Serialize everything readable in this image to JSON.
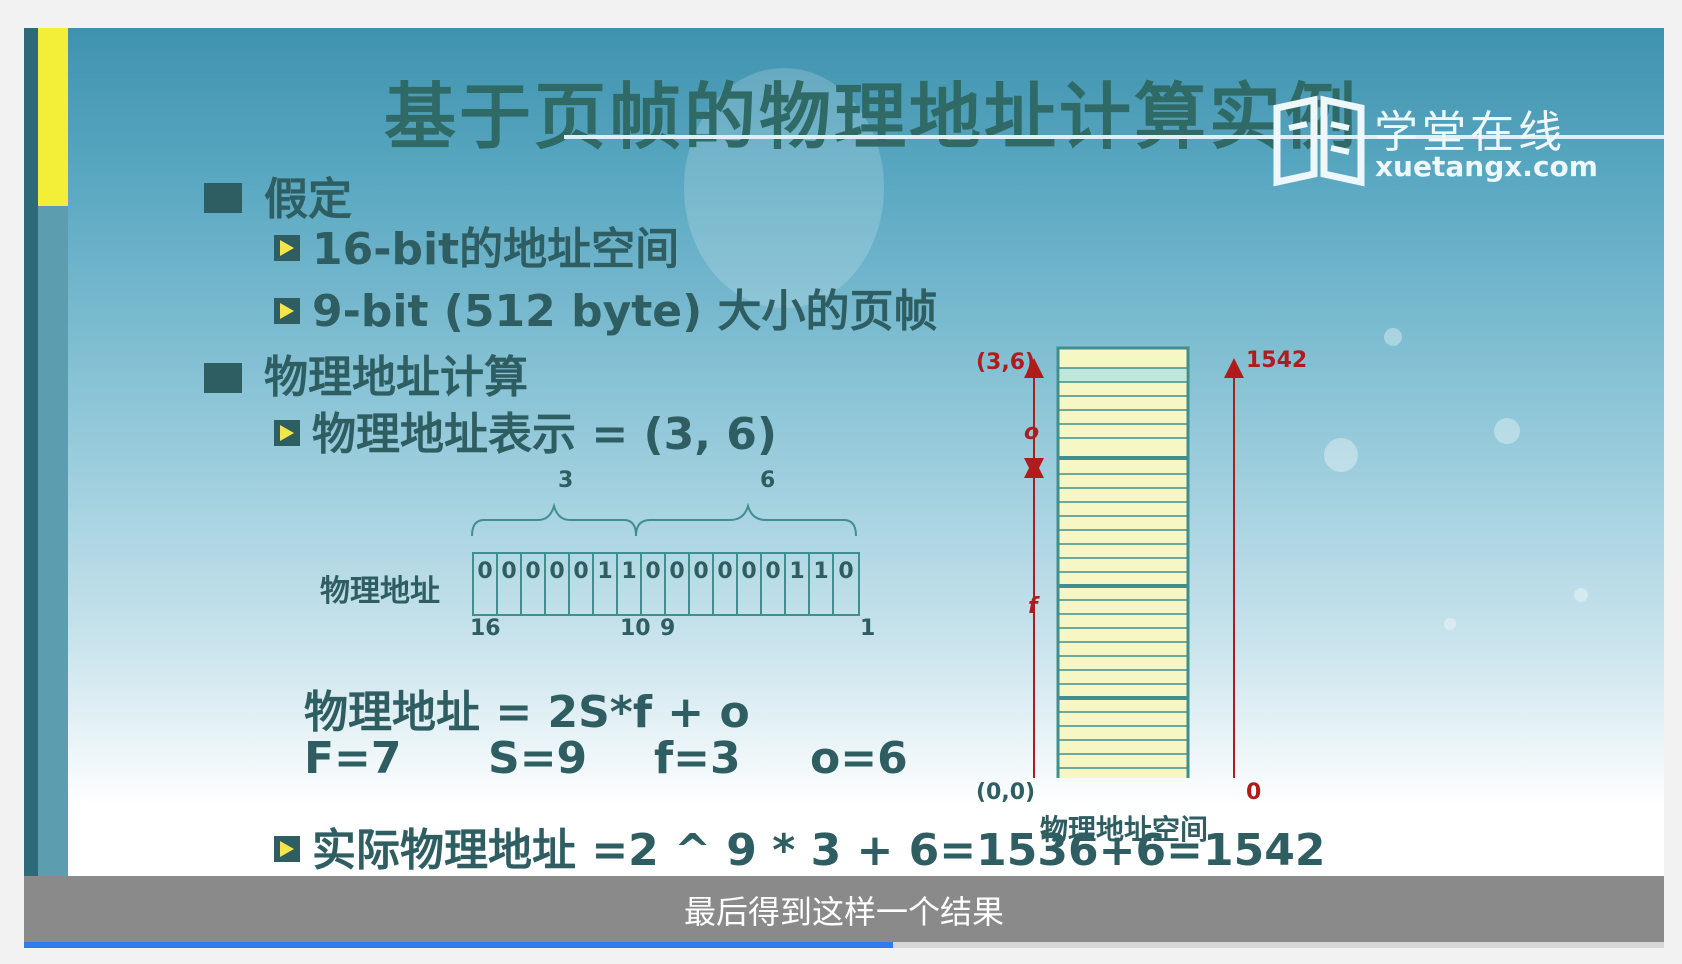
{
  "slide": {
    "title": "基于页帧的物理地址计算实例",
    "watermark": {
      "brand_cn": "学堂在线",
      "brand_en": "xuetangx.com"
    },
    "assumption": {
      "heading": "假定",
      "items": [
        "16-bit的地址空间",
        "9-bit (512 byte) 大小的页帧"
      ]
    },
    "calc": {
      "heading": "物理地址计算",
      "repr_label": "物理地址表示 =  (3, 6)"
    },
    "bit_diagram": {
      "label": "物理地址",
      "bits": [
        "0",
        "0",
        "0",
        "0",
        "0",
        "1",
        "1",
        "0",
        "0",
        "0",
        "0",
        "0",
        "0",
        "1",
        "1",
        "0"
      ],
      "brace_left_value": "3",
      "brace_right_value": "6",
      "pos_16": "16",
      "pos_10": "10",
      "pos_9": "9",
      "pos_1": "1"
    },
    "formula": "物理地址 = 2S*f + o",
    "params": {
      "F": "F=7",
      "S": "S=9",
      "f": "f=3",
      "o": "o=6"
    },
    "result": "实际物理地址 =2 ^ 9 * 3 + 6=1536+6=1542",
    "memory": {
      "top_left_label": "(3,6)",
      "top_right_label": "1542",
      "bottom_left_label": "(0,0)",
      "bottom_right_label": "0",
      "o_label": "o",
      "f_label": "f",
      "caption": "物理地址空间"
    }
  },
  "player": {
    "subtitle": "最后得到这样一个结果",
    "progress_fraction": 0.53
  },
  "colors": {
    "text_dark": "#2f5e62",
    "accent_red": "#b01c1c",
    "progress": "#2f7cf0",
    "memory_fill": "#f7f6c5"
  }
}
